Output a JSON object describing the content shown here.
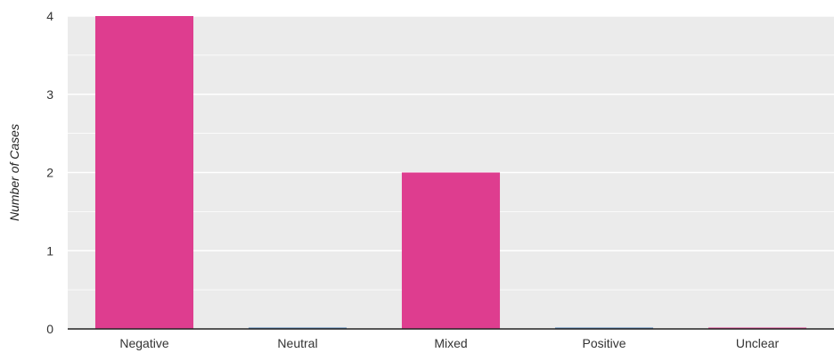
{
  "chart_data": {
    "type": "bar",
    "title": "",
    "xlabel": "",
    "ylabel": "Number of Cases",
    "categories": [
      "Negative",
      "Neutral",
      "Mixed",
      "Positive",
      "Unclear"
    ],
    "values": [
      4,
      0,
      2,
      0,
      0
    ],
    "ylim": [
      0,
      4
    ],
    "yticks": [
      "0",
      "1",
      "2",
      "3",
      "4"
    ],
    "grid": true,
    "legend": "none",
    "colors": {
      "bar": "#de3d8f",
      "zero_bars": [
        "#de3d8f",
        "#4a7fb5",
        "#de3d8f",
        "#4a7fb5",
        "#de3d8f"
      ],
      "plot_background": "#ebebeb",
      "gridline": "#ffffff",
      "axis": "#222222"
    }
  }
}
